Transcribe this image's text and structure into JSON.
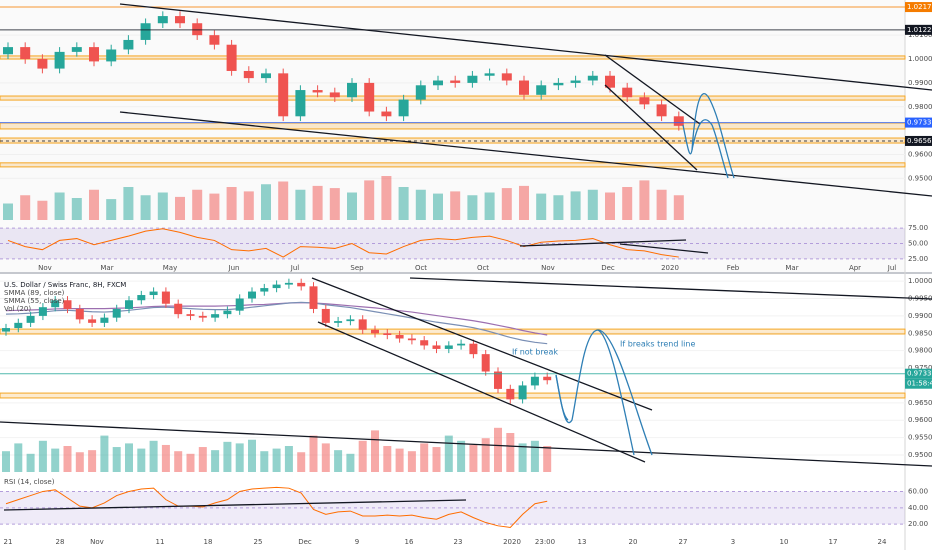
{
  "chart_data": [
    {
      "type": "candlestick",
      "up_color": "#26a69a",
      "down_color": "#ef5350",
      "open": [
        1.002,
        1.005,
        1.0,
        0.996,
        1.003,
        1.005,
        0.999,
        1.004,
        1.008,
        1.015,
        1.018,
        1.015,
        1.01,
        1.006,
        0.995,
        0.992,
        0.994,
        0.976,
        0.987,
        0.986,
        0.984,
        0.99,
        0.978,
        0.976,
        0.983,
        0.989,
        0.991,
        0.99,
        0.993,
        0.994,
        0.991,
        0.985,
        0.989,
        0.99,
        0.991,
        0.993,
        0.988,
        0.984,
        0.981,
        0.976
      ],
      "high": [
        1.007,
        1.007,
        1.002,
        1.005,
        1.007,
        1.007,
        1.006,
        1.01,
        1.017,
        1.02,
        1.02,
        1.017,
        1.012,
        1.008,
        0.997,
        0.996,
        0.996,
        0.989,
        0.989,
        0.988,
        0.992,
        0.992,
        0.98,
        0.985,
        0.991,
        0.993,
        0.993,
        0.995,
        0.996,
        0.996,
        0.993,
        0.991,
        0.992,
        0.993,
        0.995,
        0.995,
        0.99,
        0.986,
        0.983,
        0.978
      ],
      "low": [
        1.0,
        0.998,
        0.994,
        0.994,
        1.001,
        0.997,
        0.997,
        1.002,
        1.006,
        1.013,
        1.013,
        1.008,
        1.004,
        0.993,
        0.99,
        0.99,
        0.974,
        0.974,
        0.984,
        0.982,
        0.982,
        0.976,
        0.974,
        0.974,
        0.981,
        0.987,
        0.988,
        0.988,
        0.991,
        0.989,
        0.983,
        0.983,
        0.987,
        0.988,
        0.989,
        0.986,
        0.982,
        0.979,
        0.974,
        0.97
      ],
      "close": [
        1.005,
        1.0,
        0.996,
        1.003,
        1.005,
        0.999,
        1.004,
        1.008,
        1.015,
        1.018,
        1.015,
        1.01,
        1.006,
        0.995,
        0.992,
        0.994,
        0.976,
        0.987,
        0.986,
        0.984,
        0.99,
        0.978,
        0.976,
        0.983,
        0.989,
        0.991,
        0.99,
        0.993,
        0.994,
        0.991,
        0.985,
        0.989,
        0.99,
        0.991,
        0.993,
        0.988,
        0.984,
        0.981,
        0.976,
        0.972
      ],
      "ylim": [
        0.9535,
        1.0239
      ],
      "yticks": [
        {
          "value": 1.01,
          "label": "1.01000"
        },
        {
          "value": 1,
          "label": "1.00000"
        },
        {
          "value": 0.99,
          "label": "0.99000"
        },
        {
          "value": 0.98,
          "label": "0.98000"
        },
        {
          "value": 0.96,
          "label": "0.96000"
        },
        {
          "value": 0.95,
          "label": "0.95000"
        }
      ],
      "levels": [
        {
          "value": 1.02178,
          "color": "#f57c00"
        },
        {
          "value": 1.01223,
          "color": "#131722"
        },
        {
          "value": 0.97337,
          "color": "#2962ff"
        },
        {
          "value": 0.96567,
          "color": "#131722",
          "style": "dashed"
        }
      ],
      "zones": [
        [
          1.0,
          1.0013
        ],
        [
          0.9828,
          0.9845
        ],
        [
          0.9707,
          0.9732
        ],
        [
          0.9648,
          0.9669
        ],
        [
          0.9548,
          0.9565
        ]
      ],
      "zone_color": "#f5a623",
      "volume": {
        "values": [
          30,
          45,
          35,
          50,
          40,
          55,
          38,
          60,
          45,
          50,
          42,
          55,
          48,
          60,
          52,
          65,
          70,
          55,
          62,
          58,
          50,
          72,
          80,
          60,
          55,
          48,
          52,
          45,
          50,
          58,
          62,
          48,
          45,
          52,
          55,
          50,
          60,
          72,
          55,
          45
        ],
        "ylim": [
          0,
          100
        ]
      },
      "rsi": {
        "values": [
          55,
          45,
          40,
          55,
          58,
          48,
          55,
          62,
          70,
          74,
          68,
          60,
          55,
          40,
          38,
          42,
          28,
          45,
          44,
          42,
          50,
          35,
          33,
          45,
          55,
          58,
          56,
          60,
          62,
          55,
          45,
          52,
          54,
          55,
          58,
          48,
          40,
          38,
          32,
          28
        ],
        "color": "#ff6d00",
        "ylim": [
          20,
          80
        ],
        "yticks": [
          {
            "value": 75,
            "label": "75.00"
          },
          {
            "value": 50,
            "label": "50.00"
          },
          {
            "value": 25,
            "label": "25.00"
          }
        ]
      },
      "x_labels": [
        "Nov",
        "Mar",
        "May",
        "Jun",
        "Jul",
        "Sep",
        "Oct",
        "Oct",
        "Nov",
        "Dec",
        "2020",
        "Feb",
        "Mar",
        "Apr",
        "Jul"
      ]
    },
    {
      "type": "candlestick",
      "title": "U.S. Dollar / Swiss Franc, 8H, FXCM",
      "up_color": "#26a69a",
      "down_color": "#ef5350",
      "open": [
        0.9855,
        0.9865,
        0.988,
        0.99,
        0.9925,
        0.9945,
        0.992,
        0.989,
        0.988,
        0.9895,
        0.992,
        0.9945,
        0.996,
        0.997,
        0.9935,
        0.9905,
        0.99,
        0.9895,
        0.9905,
        0.9915,
        0.995,
        0.997,
        0.998,
        0.999,
        0.9995,
        0.9985,
        0.992,
        0.988,
        0.9885,
        0.989,
        0.986,
        0.985,
        0.9845,
        0.9835,
        0.983,
        0.9815,
        0.9805,
        0.9815,
        0.982,
        0.979,
        0.974,
        0.969,
        0.966,
        0.97,
        0.9725
      ],
      "high": [
        0.9877,
        0.9892,
        0.9912,
        0.9937,
        0.9957,
        0.9957,
        0.9932,
        0.9902,
        0.9907,
        0.9932,
        0.9957,
        0.9972,
        0.9982,
        0.9982,
        0.9947,
        0.9917,
        0.9912,
        0.9917,
        0.9927,
        0.9962,
        0.9982,
        0.9992,
        1.0002,
        1.0007,
        1.0007,
        0.9997,
        0.9932,
        0.9897,
        0.9902,
        0.9902,
        0.9872,
        0.9862,
        0.9857,
        0.9847,
        0.9842,
        0.9827,
        0.9827,
        0.9832,
        0.9832,
        0.9802,
        0.9752,
        0.9702,
        0.9712,
        0.9737,
        0.9737
      ],
      "low": [
        0.9843,
        0.9853,
        0.9868,
        0.9888,
        0.9913,
        0.9908,
        0.9878,
        0.9868,
        0.9868,
        0.9883,
        0.9908,
        0.9933,
        0.9948,
        0.9923,
        0.9893,
        0.9888,
        0.9883,
        0.9883,
        0.9893,
        0.9903,
        0.9938,
        0.9958,
        0.9968,
        0.9978,
        0.9973,
        0.9908,
        0.9868,
        0.9868,
        0.9873,
        0.9848,
        0.9838,
        0.9833,
        0.9823,
        0.9818,
        0.9803,
        0.9793,
        0.9793,
        0.9803,
        0.9778,
        0.9728,
        0.9678,
        0.9648,
        0.9648,
        0.9688,
        0.9703
      ],
      "close": [
        0.9865,
        0.988,
        0.99,
        0.9925,
        0.9945,
        0.992,
        0.989,
        0.988,
        0.9895,
        0.992,
        0.9945,
        0.996,
        0.997,
        0.9935,
        0.9905,
        0.99,
        0.9895,
        0.9905,
        0.9915,
        0.995,
        0.997,
        0.998,
        0.999,
        0.9995,
        0.9985,
        0.992,
        0.988,
        0.9885,
        0.989,
        0.986,
        0.985,
        0.9845,
        0.9835,
        0.983,
        0.9815,
        0.9805,
        0.9815,
        0.982,
        0.979,
        0.974,
        0.969,
        0.966,
        0.97,
        0.9725,
        0.9715
      ],
      "ylim": [
        0.9451,
        1.0009
      ],
      "yticks": [
        {
          "value": 1,
          "label": "1.00000"
        },
        {
          "value": 0.995,
          "label": "0.99500"
        },
        {
          "value": 0.99,
          "label": "0.99000"
        },
        {
          "value": 0.985,
          "label": "0.98500"
        },
        {
          "value": 0.98,
          "label": "0.98000"
        },
        {
          "value": 0.975,
          "label": "0.97500"
        },
        {
          "value": 0.965,
          "label": "0.96500"
        },
        {
          "value": 0.96,
          "label": "0.96000"
        },
        {
          "value": 0.955,
          "label": "0.95500"
        },
        {
          "value": 0.95,
          "label": "0.95000"
        }
      ],
      "levels": [
        {
          "value": 0.97337,
          "color": "#26a69a"
        }
      ],
      "countdown": "01:58:48",
      "zones": [
        [
          0.9848,
          0.9862
        ],
        [
          0.9664,
          0.9678
        ]
      ],
      "zone_color": "#f5a623",
      "indicators": [
        {
          "name": "SMMA (89, close)",
          "color": "#9c6fb0",
          "values": [
            0.9915,
            0.9916,
            0.9917,
            0.9918,
            0.992,
            0.9921,
            0.9921,
            0.9921,
            0.9921,
            0.9922,
            0.9923,
            0.9925,
            0.9927,
            0.9928,
            0.9928,
            0.9928,
            0.9928,
            0.9928,
            0.9929,
            0.993,
            0.9932,
            0.9933,
            0.9935,
            0.9937,
            0.9938,
            0.9937,
            0.9935,
            0.9932,
            0.9929,
            0.9926,
            0.9923,
            0.9919,
            0.9915,
            0.9911,
            0.9906,
            0.9901,
            0.9896,
            0.9891,
            0.9886,
            0.988,
            0.9873,
            0.9866,
            0.9858,
            0.9851,
            0.9845
          ]
        },
        {
          "name": "SMMA (55, close)",
          "color": "#7a8fb5",
          "values": [
            0.9905,
            0.9906,
            0.9908,
            0.9911,
            0.9915,
            0.9916,
            0.9914,
            0.9912,
            0.9911,
            0.9913,
            0.9916,
            0.992,
            0.9924,
            0.9925,
            0.9923,
            0.9921,
            0.9919,
            0.9918,
            0.9918,
            0.9921,
            0.9925,
            0.9929,
            0.9933,
            0.9937,
            0.9939,
            0.9937,
            0.9932,
            0.9928,
            0.9924,
            0.9918,
            0.9912,
            0.9906,
            0.99,
            0.9894,
            0.9888,
            0.9882,
            0.9877,
            0.9872,
            0.9866,
            0.9858,
            0.9848,
            0.9838,
            0.983,
            0.9824,
            0.982
          ]
        }
      ],
      "volume": {
        "name": "Vol (20)",
        "values": [
          40,
          55,
          35,
          60,
          45,
          50,
          38,
          42,
          70,
          48,
          55,
          45,
          60,
          52,
          40,
          35,
          48,
          42,
          58,
          55,
          62,
          40,
          45,
          50,
          38,
          70,
          55,
          42,
          35,
          60,
          80,
          50,
          45,
          40,
          55,
          48,
          70,
          60,
          52,
          65,
          85,
          75,
          55,
          60,
          50
        ],
        "ylim": [
          0,
          100
        ]
      },
      "rsi": {
        "name": "RSI (14, close)",
        "color": "#ff6d00",
        "values": [
          45,
          50,
          55,
          60,
          62,
          52,
          42,
          40,
          46,
          55,
          60,
          63,
          64,
          50,
          42,
          42,
          41,
          46,
          50,
          60,
          63,
          64,
          65,
          64,
          58,
          38,
          32,
          35,
          36,
          30,
          30,
          31,
          30,
          31,
          28,
          26,
          32,
          35,
          28,
          22,
          18,
          16,
          32,
          45,
          48
        ],
        "ylim": [
          8,
          74
        ],
        "yticks": [
          {
            "value": 60,
            "label": "60.00"
          },
          {
            "value": 40,
            "label": "40.00"
          },
          {
            "value": 20,
            "label": "20.00"
          }
        ]
      },
      "annotations": [
        "If not break",
        "If breaks trend line"
      ],
      "x_labels": [
        "21",
        "28",
        "Nov",
        "11",
        "18",
        "25",
        "Dec",
        "9",
        "16",
        "23",
        "2020",
        "23:00",
        "13",
        "20",
        "27",
        "3",
        "10",
        "17",
        "24"
      ]
    }
  ]
}
